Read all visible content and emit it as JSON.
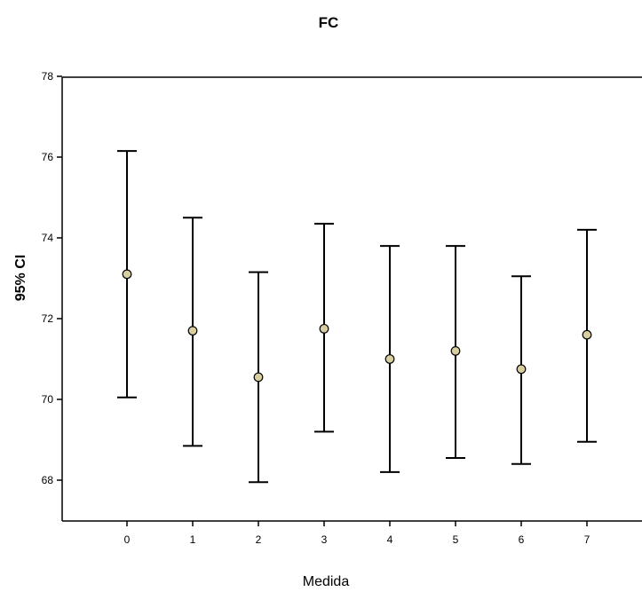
{
  "chart_data": {
    "type": "errorbar",
    "title": "FC",
    "xlabel": "Medida",
    "ylabel": "95% CI",
    "ylim": [
      67,
      78
    ],
    "yticks": [
      68,
      70,
      72,
      74,
      76,
      78
    ],
    "categories": [
      "0",
      "1",
      "2",
      "3",
      "4",
      "5",
      "6",
      "7"
    ],
    "means": [
      73.1,
      71.7,
      70.55,
      71.75,
      71.0,
      71.2,
      70.75,
      71.6
    ],
    "upper": [
      76.15,
      74.5,
      73.15,
      74.35,
      73.8,
      73.8,
      73.05,
      74.2
    ],
    "lower": [
      70.05,
      68.85,
      67.95,
      69.2,
      68.2,
      68.55,
      68.4,
      68.95
    ],
    "marker_fill": "#d8cea0",
    "grid": false
  }
}
